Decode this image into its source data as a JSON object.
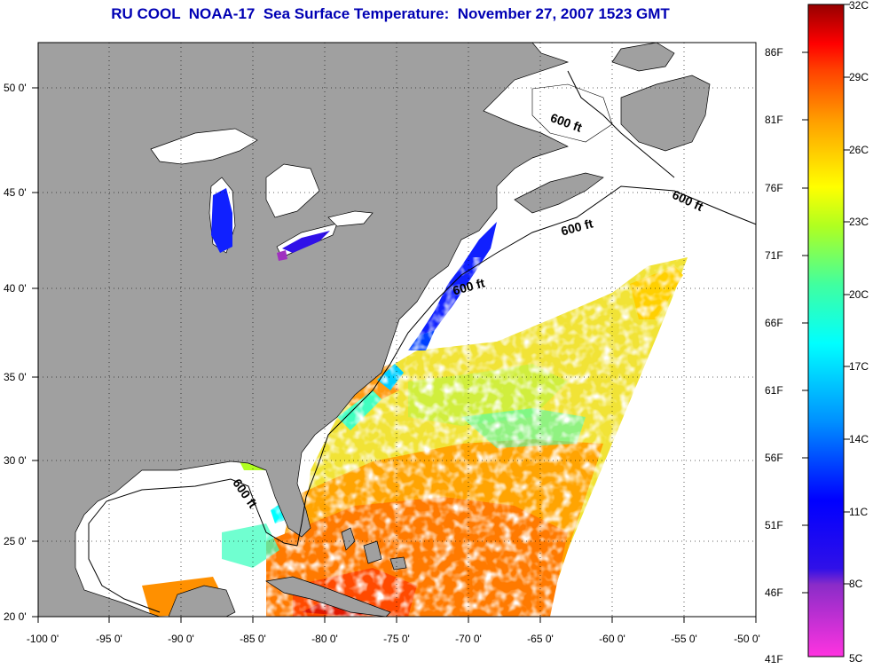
{
  "title": "RU COOL  NOAA-17  Sea Surface Temperature:  November 27, 2007 1523 GMT",
  "map": {
    "lat_ticks": [
      "50 0'",
      "45 0'",
      "40 0'",
      "35 0'",
      "30 0'",
      "25 0'",
      "20 0'"
    ],
    "lon_ticks": [
      "-100 0'",
      "-95 0'",
      "-90 0'",
      "-85 0'",
      "-80 0'",
      "-75 0'",
      "-70 0'",
      "-65 0'",
      "-60 0'",
      "-55 0'",
      "-50 0'"
    ],
    "lat_range": [
      20,
      52.5
    ],
    "lon_range": [
      -100,
      -50
    ],
    "grid": "dotted",
    "land_color": "#a0a0a0",
    "no_data_color": "#ffffff",
    "contour_labels": [
      "600 ft",
      "600 ft",
      "600 ft",
      "600 ft",
      "600 ft"
    ]
  },
  "colorbar": {
    "fahrenheit": [
      "86F",
      "81F",
      "76F",
      "71F",
      "66F",
      "61F",
      "56F",
      "51F",
      "46F",
      "41F"
    ],
    "celsius": [
      "32C",
      "29C",
      "26C",
      "23C",
      "20C",
      "17C",
      "14C",
      "11C",
      "8C",
      "5C"
    ],
    "range_c": [
      5,
      32
    ]
  }
}
